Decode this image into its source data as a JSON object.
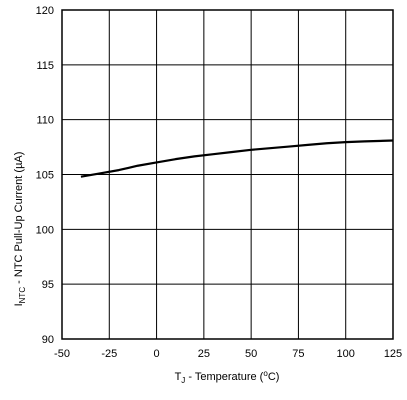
{
  "chart_data": {
    "type": "line",
    "xlabel_parts": [
      "T",
      "J",
      " - Temperature (",
      "o",
      "C)"
    ],
    "ylabel_parts": [
      "I",
      "NTC",
      " - NTC Pull-Up Current (µA)"
    ],
    "xlim": [
      -50,
      125
    ],
    "ylim": [
      90,
      120
    ],
    "x_ticks": [
      -50,
      -25,
      0,
      25,
      50,
      75,
      100,
      125
    ],
    "y_ticks": [
      90,
      95,
      100,
      105,
      110,
      115,
      120
    ],
    "grid": true,
    "legend": "none",
    "series": [
      {
        "color": "#000000",
        "x": [
          -40,
          -30,
          -20,
          -10,
          0,
          10,
          20,
          30,
          40,
          50,
          60,
          70,
          80,
          90,
          100,
          110,
          125
        ],
        "y": [
          104.8,
          105.1,
          105.4,
          105.8,
          106.1,
          106.4,
          106.65,
          106.85,
          107.05,
          107.25,
          107.4,
          107.55,
          107.7,
          107.85,
          107.95,
          108.02,
          108.1
        ]
      }
    ]
  }
}
